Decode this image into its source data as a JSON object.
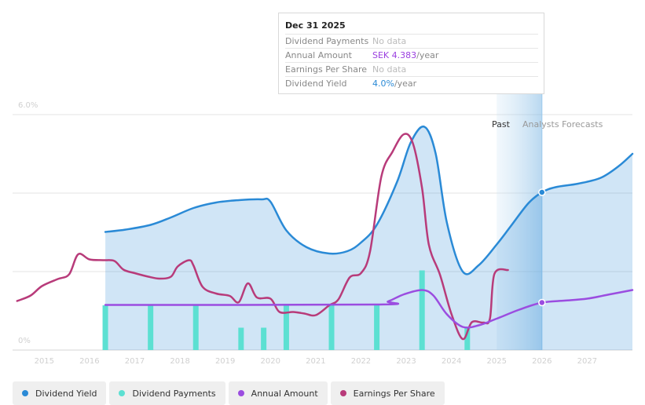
{
  "chart_data": {
    "type": "line",
    "y_unit": "%",
    "ylim": [
      0,
      6
    ],
    "xlim": [
      2014.3,
      2028.0
    ],
    "y_ticks": [
      {
        "v": 6,
        "label": "6.0%"
      },
      {
        "v": 0,
        "label": "0%"
      }
    ],
    "x_ticks": [
      "2015",
      "2016",
      "2017",
      "2018",
      "2019",
      "2020",
      "2021",
      "2022",
      "2023",
      "2024",
      "2025",
      "2026",
      "2027"
    ],
    "periods": {
      "past_label": "Past",
      "forecast_label": "Analysts Forecasts",
      "forecast_start": 2025.0,
      "cursor_x": 2026.0
    },
    "series": [
      {
        "name": "Dividend Yield",
        "color": "#2a8ad6",
        "fill": true,
        "points": [
          [
            2016.35,
            3.01
          ],
          [
            2016.8,
            3.07
          ],
          [
            2017.35,
            3.19
          ],
          [
            2017.8,
            3.38
          ],
          [
            2018.3,
            3.62
          ],
          [
            2018.8,
            3.76
          ],
          [
            2019.3,
            3.82
          ],
          [
            2019.8,
            3.84
          ],
          [
            2020.0,
            3.78
          ],
          [
            2020.35,
            3.05
          ],
          [
            2020.8,
            2.62
          ],
          [
            2021.3,
            2.46
          ],
          [
            2021.7,
            2.52
          ],
          [
            2022.0,
            2.74
          ],
          [
            2022.35,
            3.19
          ],
          [
            2022.8,
            4.29
          ],
          [
            2023.1,
            5.29
          ],
          [
            2023.4,
            5.69
          ],
          [
            2023.65,
            5.01
          ],
          [
            2023.9,
            3.24
          ],
          [
            2024.25,
            2.0
          ],
          [
            2024.6,
            2.16
          ],
          [
            2025.0,
            2.69
          ],
          [
            2025.3,
            3.14
          ],
          [
            2025.7,
            3.74
          ],
          [
            2026.0,
            4.02
          ],
          [
            2026.3,
            4.15
          ],
          [
            2026.8,
            4.24
          ],
          [
            2027.3,
            4.39
          ],
          [
            2027.7,
            4.69
          ],
          [
            2028.0,
            5.0
          ]
        ]
      },
      {
        "name": "Earnings Per Share",
        "color": "#b83b7a",
        "fill": false,
        "points": [
          [
            2014.4,
            1.25
          ],
          [
            2014.7,
            1.39
          ],
          [
            2014.95,
            1.63
          ],
          [
            2015.3,
            1.81
          ],
          [
            2015.55,
            1.93
          ],
          [
            2015.75,
            2.44
          ],
          [
            2016.0,
            2.31
          ],
          [
            2016.3,
            2.29
          ],
          [
            2016.55,
            2.27
          ],
          [
            2016.75,
            2.05
          ],
          [
            2017.0,
            1.96
          ],
          [
            2017.3,
            1.87
          ],
          [
            2017.55,
            1.82
          ],
          [
            2017.8,
            1.87
          ],
          [
            2017.95,
            2.13
          ],
          [
            2018.2,
            2.29
          ],
          [
            2018.3,
            2.15
          ],
          [
            2018.5,
            1.61
          ],
          [
            2018.8,
            1.44
          ],
          [
            2019.1,
            1.38
          ],
          [
            2019.3,
            1.22
          ],
          [
            2019.5,
            1.7
          ],
          [
            2019.7,
            1.34
          ],
          [
            2020.0,
            1.31
          ],
          [
            2020.2,
            0.97
          ],
          [
            2020.5,
            0.97
          ],
          [
            2020.75,
            0.93
          ],
          [
            2021.0,
            0.89
          ],
          [
            2021.3,
            1.14
          ],
          [
            2021.5,
            1.29
          ],
          [
            2021.75,
            1.85
          ],
          [
            2022.0,
            1.96
          ],
          [
            2022.2,
            2.51
          ],
          [
            2022.45,
            4.42
          ],
          [
            2022.7,
            5.06
          ],
          [
            2022.95,
            5.5
          ],
          [
            2023.15,
            5.26
          ],
          [
            2023.35,
            4.13
          ],
          [
            2023.5,
            2.69
          ],
          [
            2023.75,
            1.91
          ],
          [
            2024.0,
            0.92
          ],
          [
            2024.25,
            0.28
          ],
          [
            2024.45,
            0.71
          ],
          [
            2024.7,
            0.7
          ],
          [
            2024.85,
            0.8
          ],
          [
            2024.95,
            1.94
          ],
          [
            2025.25,
            2.04
          ]
        ]
      },
      {
        "name": "Annual Amount",
        "color": "#9b4de0",
        "fill": false,
        "points": [
          [
            2016.35,
            1.15
          ],
          [
            2022.3,
            1.16
          ],
          [
            2022.6,
            1.24
          ],
          [
            2022.95,
            1.42
          ],
          [
            2023.35,
            1.53
          ],
          [
            2023.6,
            1.39
          ],
          [
            2023.9,
            0.91
          ],
          [
            2024.25,
            0.59
          ],
          [
            2024.6,
            0.63
          ],
          [
            2025.0,
            0.8
          ],
          [
            2025.5,
            1.03
          ],
          [
            2026.0,
            1.21
          ],
          [
            2026.5,
            1.26
          ],
          [
            2027.0,
            1.31
          ],
          [
            2027.5,
            1.42
          ],
          [
            2028.0,
            1.53
          ]
        ]
      },
      {
        "name": "Dividend Payments",
        "color": "#5ce0d2",
        "type": "bar",
        "points": [
          [
            2016.35,
            1.14
          ],
          [
            2017.35,
            1.14
          ],
          [
            2018.35,
            1.14
          ],
          [
            2019.35,
            0.57
          ],
          [
            2019.85,
            0.57
          ],
          [
            2020.35,
            1.14
          ],
          [
            2021.35,
            1.14
          ],
          [
            2022.35,
            1.14
          ],
          [
            2023.35,
            2.03
          ],
          [
            2024.35,
            0.58
          ]
        ]
      }
    ],
    "markers": [
      {
        "series": "Dividend Yield",
        "x": 2026.0,
        "y": 4.02,
        "color": "#2a8ad6"
      },
      {
        "series": "Annual Amount",
        "x": 2026.0,
        "y": 1.21,
        "color": "#9b4de0"
      }
    ]
  },
  "tooltip": {
    "date": "Dec 31 2025",
    "rows": [
      {
        "label": "Dividend Payments",
        "value": "No data",
        "unit": "",
        "style": "nodata"
      },
      {
        "label": "Annual Amount",
        "value": "SEK 4.383",
        "unit": "/year",
        "style": "purple"
      },
      {
        "label": "Earnings Per Share",
        "value": "No data",
        "unit": "",
        "style": "nodata"
      },
      {
        "label": "Dividend Yield",
        "value": "4.0%",
        "unit": "/year",
        "style": "blue"
      }
    ]
  },
  "legend": [
    {
      "label": "Dividend Yield",
      "color": "#2a8ad6"
    },
    {
      "label": "Dividend Payments",
      "color": "#5ce0d2"
    },
    {
      "label": "Annual Amount",
      "color": "#9b4de0"
    },
    {
      "label": "Earnings Per Share",
      "color": "#b83b7a"
    }
  ]
}
